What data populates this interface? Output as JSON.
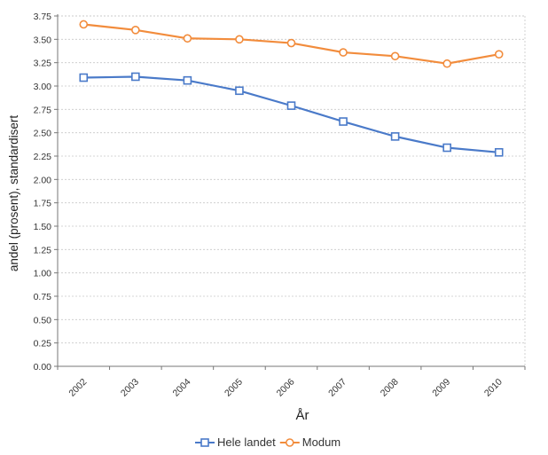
{
  "chart_data": {
    "type": "line",
    "categories": [
      "2002",
      "2003",
      "2004",
      "2005",
      "2006",
      "2007",
      "2008",
      "2009",
      "2010"
    ],
    "series": [
      {
        "name": "Hele landet",
        "marker": "square",
        "color": "#4a7ac9",
        "values": [
          3.09,
          3.1,
          3.06,
          2.95,
          2.79,
          2.62,
          2.46,
          2.34,
          2.29
        ]
      },
      {
        "name": "Modum",
        "marker": "circle",
        "color": "#f28c3c",
        "values": [
          3.66,
          3.6,
          3.51,
          3.5,
          3.46,
          3.36,
          3.32,
          3.24,
          3.34
        ]
      }
    ],
    "xlabel": "År",
    "ylabel": "andel (prosent), standardisert",
    "ylim": [
      0,
      3.75
    ],
    "yticks": [
      "0.00",
      "0.25",
      "0.50",
      "0.75",
      "1.00",
      "1.25",
      "1.50",
      "1.75",
      "2.00",
      "2.25",
      "2.50",
      "2.75",
      "3.00",
      "3.25",
      "3.50",
      "3.75"
    ],
    "grid": true,
    "legend_position": "bottom-center"
  }
}
